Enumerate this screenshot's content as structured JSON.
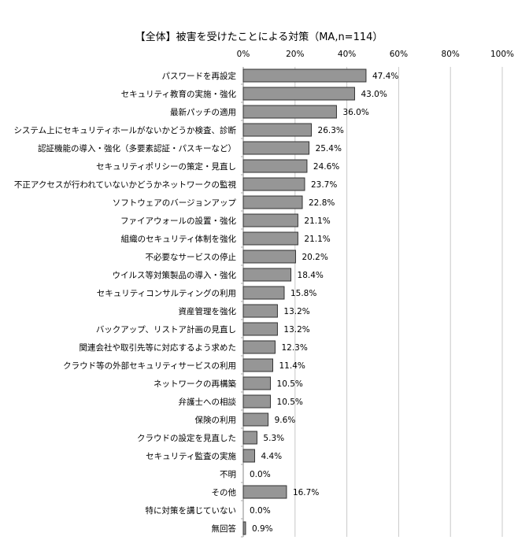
{
  "chart_data": {
    "type": "bar",
    "orientation": "horizontal",
    "title": "【全体】被害を受けたことによる対策（MA,n=114）",
    "xlabel": "",
    "ylabel": "",
    "xlim": [
      0,
      100
    ],
    "x_ticks": [
      "0%",
      "20%",
      "40%",
      "60%",
      "80%",
      "100%"
    ],
    "grid": true,
    "bar_color": "#969696",
    "categories": [
      "パスワードを再設定",
      "セキュリティ教育の実施・強化",
      "最新パッチの適用",
      "システム上にセキュリティホールがないかどうか検査、診断",
      "認証機能の導入・強化（多要素認証・パスキーなど）",
      "セキュリティポリシーの策定・見直し",
      "不正アクセスが行われていないかどうかネットワークの監視",
      "ソフトウェアのバージョンアップ",
      "ファイアウォールの設置・強化",
      "組織のセキュリティ体制を強化",
      "不必要なサービスの停止",
      "ウイルス等対策製品の導入・強化",
      "セキュリティコンサルティングの利用",
      "資産管理を強化",
      "バックアップ、リストア計画の見直し",
      "関連会社や取引先等に対応するよう求めた",
      "クラウド等の外部セキュリティサービスの利用",
      "ネットワークの再構築",
      "弁護士への相談",
      "保険の利用",
      "クラウドの設定を見直した",
      "セキュリティ監査の実施",
      "不明",
      "その他",
      "特に対策を講じていない",
      "無回答"
    ],
    "values": [
      47.4,
      43.0,
      36.0,
      26.3,
      25.4,
      24.6,
      23.7,
      22.8,
      21.1,
      21.1,
      20.2,
      18.4,
      15.8,
      13.2,
      13.2,
      12.3,
      11.4,
      10.5,
      10.5,
      9.6,
      5.3,
      4.4,
      0.0,
      16.7,
      0.0,
      0.9
    ],
    "value_labels": [
      "47.4%",
      "43.0%",
      "36.0%",
      "26.3%",
      "25.4%",
      "24.6%",
      "23.7%",
      "22.8%",
      "21.1%",
      "21.1%",
      "20.2%",
      "18.4%",
      "15.8%",
      "13.2%",
      "13.2%",
      "12.3%",
      "11.4%",
      "10.5%",
      "10.5%",
      "9.6%",
      "5.3%",
      "4.4%",
      "0.0%",
      "16.7%",
      "0.0%",
      "0.9%"
    ]
  }
}
